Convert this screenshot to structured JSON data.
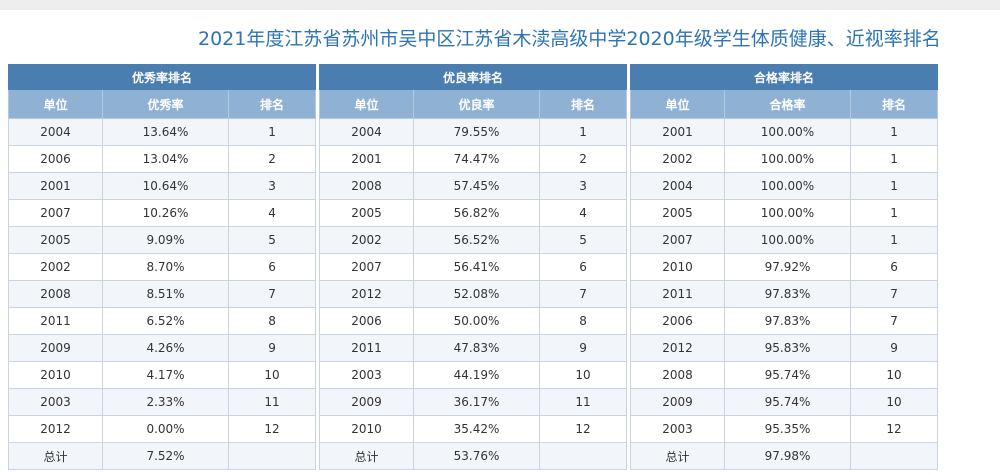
{
  "page": {
    "title": "2021年度江苏省苏州市吴中区江苏省木渎高级中学2020年级学生体质健康、近视率排名"
  },
  "tables": [
    {
      "caption": "优秀率排名",
      "headers": [
        "单位",
        "优秀率",
        "排名"
      ],
      "rows": [
        [
          "2004",
          "13.64%",
          "1"
        ],
        [
          "2006",
          "13.04%",
          "2"
        ],
        [
          "2001",
          "10.64%",
          "3"
        ],
        [
          "2007",
          "10.26%",
          "4"
        ],
        [
          "2005",
          "9.09%",
          "5"
        ],
        [
          "2002",
          "8.70%",
          "6"
        ],
        [
          "2008",
          "8.51%",
          "7"
        ],
        [
          "2011",
          "6.52%",
          "8"
        ],
        [
          "2009",
          "4.26%",
          "9"
        ],
        [
          "2010",
          "4.17%",
          "10"
        ],
        [
          "2003",
          "2.33%",
          "11"
        ],
        [
          "2012",
          "0.00%",
          "12"
        ]
      ],
      "total": [
        "总计",
        "7.52%",
        ""
      ]
    },
    {
      "caption": "优良率排名",
      "headers": [
        "单位",
        "优良率",
        "排名"
      ],
      "rows": [
        [
          "2004",
          "79.55%",
          "1"
        ],
        [
          "2001",
          "74.47%",
          "2"
        ],
        [
          "2008",
          "57.45%",
          "3"
        ],
        [
          "2005",
          "56.82%",
          "4"
        ],
        [
          "2002",
          "56.52%",
          "5"
        ],
        [
          "2007",
          "56.41%",
          "6"
        ],
        [
          "2012",
          "52.08%",
          "7"
        ],
        [
          "2006",
          "50.00%",
          "8"
        ],
        [
          "2011",
          "47.83%",
          "9"
        ],
        [
          "2003",
          "44.19%",
          "10"
        ],
        [
          "2009",
          "36.17%",
          "11"
        ],
        [
          "2010",
          "35.42%",
          "12"
        ]
      ],
      "total": [
        "总计",
        "53.76%",
        ""
      ]
    },
    {
      "caption": "合格率排名",
      "headers": [
        "单位",
        "合格率",
        "排名"
      ],
      "rows": [
        [
          "2001",
          "100.00%",
          "1"
        ],
        [
          "2002",
          "100.00%",
          "1"
        ],
        [
          "2004",
          "100.00%",
          "1"
        ],
        [
          "2005",
          "100.00%",
          "1"
        ],
        [
          "2007",
          "100.00%",
          "1"
        ],
        [
          "2010",
          "97.92%",
          "6"
        ],
        [
          "2011",
          "97.83%",
          "7"
        ],
        [
          "2006",
          "97.83%",
          "7"
        ],
        [
          "2012",
          "95.83%",
          "9"
        ],
        [
          "2008",
          "95.74%",
          "10"
        ],
        [
          "2009",
          "95.74%",
          "10"
        ],
        [
          "2003",
          "95.35%",
          "12"
        ]
      ],
      "total": [
        "总计",
        "97.98%",
        ""
      ]
    }
  ],
  "colors": {
    "title": "#2e74b5",
    "caption_bg": "#4a7eb0",
    "header_bg": "#8fb2d4",
    "stripe_bg": "#f2f6fa",
    "border": "#c9d4e0"
  }
}
